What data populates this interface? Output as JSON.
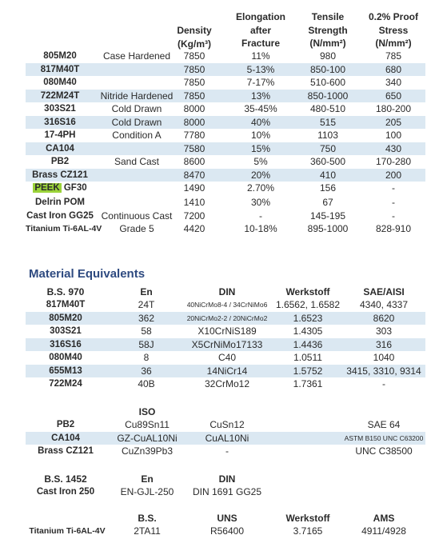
{
  "props": {
    "headers": {
      "density": [
        "Density",
        "(Kg/m³)"
      ],
      "elongation": [
        "Elongation",
        "after",
        "Fracture"
      ],
      "tensile": [
        "Tensile",
        "Strength",
        "(N/mm²)"
      ],
      "proof": [
        "0.2% Proof",
        "Stress",
        "(N/mm²)"
      ]
    },
    "rows": [
      {
        "name": "805M20",
        "cond": "Case Hardened",
        "density": "7850",
        "elong": "11%",
        "tensile": "980",
        "proof": "785"
      },
      {
        "name": "817M40T",
        "cond": "",
        "density": "7850",
        "elong": "5-13%",
        "tensile": "850-100",
        "proof": "680"
      },
      {
        "name": "080M40",
        "cond": "",
        "density": "7850",
        "elong": "7-17%",
        "tensile": "510-600",
        "proof": "340"
      },
      {
        "name": "722M24T",
        "cond": "Nitride Hardened",
        "density": "7850",
        "elong": "13%",
        "tensile": "850-1000",
        "proof": "650"
      },
      {
        "name": "303S21",
        "cond": "Cold Drawn",
        "density": "8000",
        "elong": "35-45%",
        "tensile": "480-510",
        "proof": "180-200"
      },
      {
        "name": "316S16",
        "cond": "Cold Drawn",
        "density": "8000",
        "elong": "40%",
        "tensile": "515",
        "proof": "205"
      },
      {
        "name": "17-4PH",
        "cond": "Condition A",
        "density": "7780",
        "elong": "10%",
        "tensile": "1103",
        "proof": "100"
      },
      {
        "name": "CA104",
        "cond": "",
        "density": "7580",
        "elong": "15%",
        "tensile": "750",
        "proof": "430"
      },
      {
        "name": "PB2",
        "cond": "Sand Cast",
        "density": "8600",
        "elong": "5%",
        "tensile": "360-500",
        "proof": "170-280"
      },
      {
        "name": "Brass CZ121",
        "cond": "",
        "density": "8470",
        "elong": "20%",
        "tensile": "410",
        "proof": "200"
      },
      {
        "name_hl": "PEEK",
        "name_rest": " GF30",
        "cond": "",
        "density": "1490",
        "elong": "2.70%",
        "tensile": "156",
        "proof": "-"
      },
      {
        "name": "Delrin POM",
        "cond": "",
        "density": "1410",
        "elong": "30%",
        "tensile": "67",
        "proof": "-"
      },
      {
        "name": "Cast Iron GG25",
        "cond": "Continuous Cast",
        "density": "7200",
        "elong": "-",
        "tensile": "145-195",
        "proof": "-"
      },
      {
        "name": "Titanium Ti-6AL-4V",
        "cond": "Grade 5",
        "density": "4420",
        "elong": "10-18%",
        "tensile": "895-1000",
        "proof": "828-910"
      }
    ]
  },
  "equivalents": {
    "title": "Material Equivalents",
    "headers": {
      "bs": "B.S. 970",
      "en": "En",
      "din": "DIN",
      "werk": "Werkstoff",
      "sae": "SAE/AISI"
    },
    "rows": [
      {
        "bs": "817M40T",
        "en": "24T",
        "din": "40NiCrMo8-4 / 34CrNiMo6",
        "din_size": "tiny",
        "werk": "1.6562, 1.6582",
        "sae": "4340, 4337"
      },
      {
        "bs": "805M20",
        "en": "362",
        "din": "20NiCrMo2-2 / 20NiCrMo2",
        "din_size": "tiny",
        "werk": "1.6523",
        "sae": "8620"
      },
      {
        "bs": "303S21",
        "en": "58",
        "din": "X10CrNiS189",
        "din_size": "",
        "werk": "1.4305",
        "sae": "303"
      },
      {
        "bs": "316S16",
        "en": "58J",
        "din": "X5CrNiMo17133",
        "din_size": "",
        "werk": "1.4436",
        "sae": "316"
      },
      {
        "bs": "080M40",
        "en": "8",
        "din": "C40",
        "din_size": "",
        "werk": "1.0511",
        "sae": "1040"
      },
      {
        "bs": "655M13",
        "en": "36",
        "din": "14NiCr14",
        "din_size": "",
        "werk": "1.5752",
        "sae": "3415, 3310, 9314"
      },
      {
        "bs": "722M24",
        "en": "40B",
        "din": "32CrMo12",
        "din_size": "",
        "werk": "1.7361",
        "sae": "-"
      }
    ]
  },
  "iso": {
    "header": "ISO",
    "rows": [
      {
        "name": "PB2",
        "iso": "Cu89Sn11",
        "din": "CuSn12",
        "sae": "SAE 64"
      },
      {
        "name": "CA104",
        "iso": "GZ-CuAL10Ni",
        "din": "CuAL10Ni",
        "sae": "ASTM B150   UNC C63200"
      },
      {
        "name": "Brass CZ121",
        "iso": "CuZn39Pb3",
        "din": "-",
        "sae": "UNC C38500"
      }
    ]
  },
  "castiron": {
    "headers": {
      "bs": "B.S. 1452",
      "en": "En",
      "din": "DIN"
    },
    "row": {
      "name": "Cast Iron 250",
      "en": "EN-GJL-250",
      "din": "DIN 1691 GG25"
    }
  },
  "titanium": {
    "headers": {
      "bs": "B.S.",
      "uns": "UNS",
      "werk": "Werkstoff",
      "ams": "AMS"
    },
    "row": {
      "name": "Titanium Ti-6AL-4V",
      "bs": "2TA11",
      "uns": "R56400",
      "werk": "3.7165",
      "ams": "4911/4928"
    }
  },
  "colors": {
    "shade": "#dbe8f2",
    "title": "#2e4a80",
    "highlight": "#9bd33a"
  }
}
